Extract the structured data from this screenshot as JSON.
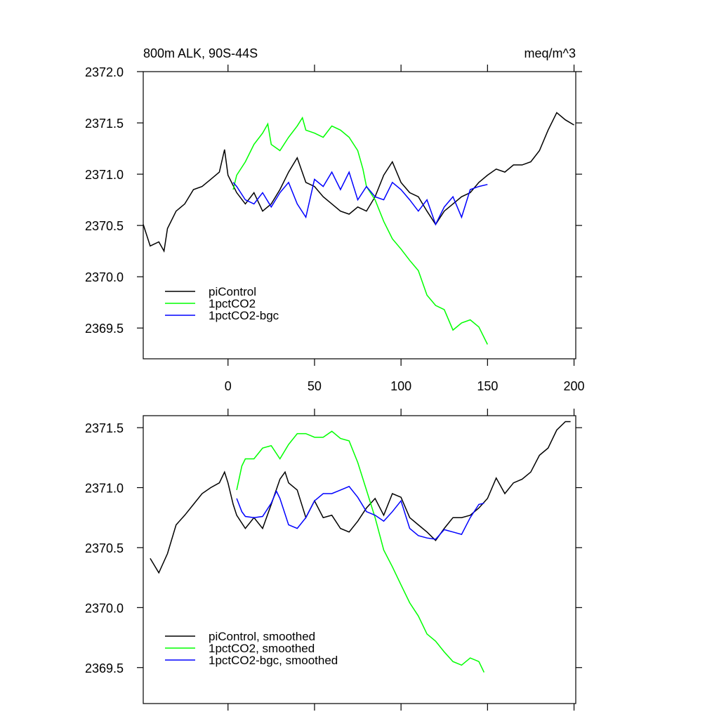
{
  "chart_data": [
    {
      "type": "line",
      "title": "800m ALK, 90S-44S",
      "units": "meq/m^3",
      "xlim": [
        -49,
        201
      ],
      "xticks": [
        0,
        50,
        100,
        150,
        200
      ],
      "xtick_labels": true,
      "ylim": [
        2369.2,
        2372.0
      ],
      "yticks": [
        {
          "value": 2369.5,
          "label": "2369.5"
        },
        {
          "value": 2370.0,
          "label": "2370.0"
        },
        {
          "value": 2370.5,
          "label": "2370.5"
        },
        {
          "value": 2371.0,
          "label": "2371.0"
        },
        {
          "value": 2371.5,
          "label": "2371.5"
        },
        {
          "value": 2372.0,
          "label": "2372.0"
        }
      ],
      "legend": "lower left",
      "series": [
        {
          "name": "piControl",
          "color": "#000000",
          "x": [
            -49,
            -45,
            -40,
            -37,
            -35,
            -30,
            -25,
            -20,
            -15,
            -10,
            -5,
            -2,
            0,
            5,
            10,
            15,
            20,
            25,
            30,
            35,
            40,
            45,
            50,
            55,
            60,
            65,
            70,
            75,
            80,
            85,
            90,
            95,
            100,
            105,
            110,
            115,
            120,
            125,
            130,
            135,
            140,
            145,
            150,
            155,
            160,
            165,
            170,
            175,
            180,
            185,
            190,
            195,
            200
          ],
          "values": [
            2370.51,
            2370.3,
            2370.34,
            2370.25,
            2370.47,
            2370.64,
            2370.71,
            2370.85,
            2370.88,
            2370.95,
            2371.02,
            2371.24,
            2370.99,
            2370.82,
            2370.71,
            2370.82,
            2370.64,
            2370.71,
            2370.85,
            2371.02,
            2371.16,
            2370.92,
            2370.88,
            2370.78,
            2370.71,
            2370.64,
            2370.61,
            2370.68,
            2370.64,
            2370.78,
            2370.99,
            2371.12,
            2370.92,
            2370.82,
            2370.78,
            2370.64,
            2370.51,
            2370.64,
            2370.71,
            2370.78,
            2370.82,
            2370.92,
            2370.99,
            2371.05,
            2371.02,
            2371.09,
            2371.09,
            2371.12,
            2371.23,
            2371.43,
            2371.6,
            2371.53,
            2371.48
          ]
        },
        {
          "name": "1pctCO2",
          "color": "#00ff00",
          "x": [
            3,
            5,
            10,
            15,
            20,
            23,
            25,
            30,
            35,
            40,
            43,
            45,
            50,
            55,
            60,
            65,
            70,
            75,
            78,
            80,
            85,
            90,
            95,
            100,
            105,
            110,
            115,
            120,
            125,
            130,
            135,
            140,
            145,
            150
          ],
          "values": [
            2370.85,
            2370.99,
            2371.12,
            2371.29,
            2371.4,
            2371.49,
            2371.29,
            2371.23,
            2371.36,
            2371.47,
            2371.55,
            2371.43,
            2371.4,
            2371.36,
            2371.47,
            2371.43,
            2371.36,
            2371.23,
            2371.05,
            2370.88,
            2370.75,
            2370.54,
            2370.37,
            2370.27,
            2370.16,
            2370.06,
            2369.82,
            2369.72,
            2369.68,
            2369.48,
            2369.55,
            2369.58,
            2369.51,
            2369.34
          ]
        },
        {
          "name": "1pctCO2-bgc",
          "color": "#0000ff",
          "x": [
            3,
            5,
            10,
            15,
            20,
            25,
            30,
            35,
            40,
            45,
            50,
            55,
            60,
            65,
            70,
            75,
            80,
            85,
            90,
            95,
            100,
            105,
            110,
            115,
            120,
            125,
            130,
            135,
            140,
            145,
            150
          ],
          "values": [
            2370.92,
            2370.88,
            2370.75,
            2370.71,
            2370.82,
            2370.68,
            2370.82,
            2370.92,
            2370.71,
            2370.58,
            2370.95,
            2370.88,
            2371.02,
            2370.85,
            2371.02,
            2370.75,
            2370.88,
            2370.78,
            2370.75,
            2370.92,
            2370.85,
            2370.75,
            2370.64,
            2370.75,
            2370.51,
            2370.68,
            2370.78,
            2370.58,
            2370.85,
            2370.88,
            2370.9
          ]
        }
      ]
    },
    {
      "type": "line",
      "xlim": [
        -49,
        201
      ],
      "xticks": [
        0,
        50,
        100,
        150,
        200
      ],
      "xtick_labels": false,
      "ylim": [
        2369.2,
        2371.6
      ],
      "yticks": [
        {
          "value": 2369.5,
          "label": "2369.5"
        },
        {
          "value": 2370.0,
          "label": "2370.0"
        },
        {
          "value": 2370.5,
          "label": "2370.5"
        },
        {
          "value": 2371.0,
          "label": "2371.0"
        },
        {
          "value": 2371.5,
          "label": "2371.5"
        }
      ],
      "legend": "lower left",
      "series": [
        {
          "name": "piControl, smoothed",
          "color": "#000000",
          "x": [
            -45,
            -40,
            -35,
            -30,
            -25,
            -20,
            -15,
            -10,
            -5,
            -2,
            0,
            3,
            5,
            10,
            15,
            20,
            25,
            30,
            33,
            35,
            40,
            45,
            50,
            55,
            60,
            65,
            70,
            75,
            80,
            85,
            90,
            95,
            100,
            105,
            110,
            115,
            120,
            125,
            130,
            135,
            140,
            145,
            150,
            155,
            160,
            165,
            170,
            175,
            180,
            185,
            190,
            195,
            198
          ],
          "values": [
            2370.41,
            2370.29,
            2370.45,
            2370.69,
            2370.77,
            2370.86,
            2370.95,
            2371.0,
            2371.04,
            2371.13,
            2371.04,
            2370.86,
            2370.77,
            2370.66,
            2370.75,
            2370.66,
            2370.86,
            2371.07,
            2371.13,
            2371.04,
            2370.98,
            2370.75,
            2370.89,
            2370.75,
            2370.77,
            2370.66,
            2370.63,
            2370.72,
            2370.83,
            2370.91,
            2370.77,
            2370.95,
            2370.92,
            2370.75,
            2370.69,
            2370.63,
            2370.56,
            2370.66,
            2370.75,
            2370.75,
            2370.77,
            2370.83,
            2370.91,
            2371.08,
            2370.95,
            2371.04,
            2371.07,
            2371.13,
            2371.27,
            2371.33,
            2371.48,
            2371.55,
            2371.55
          ]
        },
        {
          "name": "1pctCO2, smoothed",
          "color": "#00ff00",
          "x": [
            5,
            8,
            10,
            15,
            20,
            25,
            30,
            35,
            40,
            45,
            50,
            55,
            60,
            65,
            70,
            75,
            80,
            85,
            90,
            95,
            100,
            105,
            110,
            115,
            120,
            125,
            130,
            135,
            140,
            145,
            148
          ],
          "values": [
            2370.98,
            2371.18,
            2371.24,
            2371.24,
            2371.33,
            2371.35,
            2371.24,
            2371.36,
            2371.45,
            2371.45,
            2371.42,
            2371.42,
            2371.47,
            2371.41,
            2371.39,
            2371.21,
            2370.98,
            2370.75,
            2370.48,
            2370.34,
            2370.19,
            2370.04,
            2369.93,
            2369.78,
            2369.72,
            2369.63,
            2369.55,
            2369.52,
            2369.58,
            2369.55,
            2369.46
          ]
        },
        {
          "name": "1pctCO2-bgc, smoothed",
          "color": "#0000ff",
          "x": [
            5,
            8,
            10,
            15,
            20,
            25,
            28,
            30,
            35,
            40,
            45,
            50,
            55,
            60,
            65,
            70,
            75,
            80,
            85,
            90,
            95,
            100,
            105,
            110,
            115,
            120,
            125,
            130,
            135,
            140,
            145,
            148
          ],
          "values": [
            2370.91,
            2370.8,
            2370.76,
            2370.75,
            2370.76,
            2370.87,
            2370.97,
            2370.91,
            2370.69,
            2370.66,
            2370.75,
            2370.89,
            2370.95,
            2370.95,
            2370.98,
            2371.01,
            2370.92,
            2370.8,
            2370.77,
            2370.72,
            2370.8,
            2370.89,
            2370.66,
            2370.6,
            2370.58,
            2370.57,
            2370.65,
            2370.63,
            2370.61,
            2370.75,
            2370.86,
            2370.87
          ]
        }
      ]
    }
  ]
}
